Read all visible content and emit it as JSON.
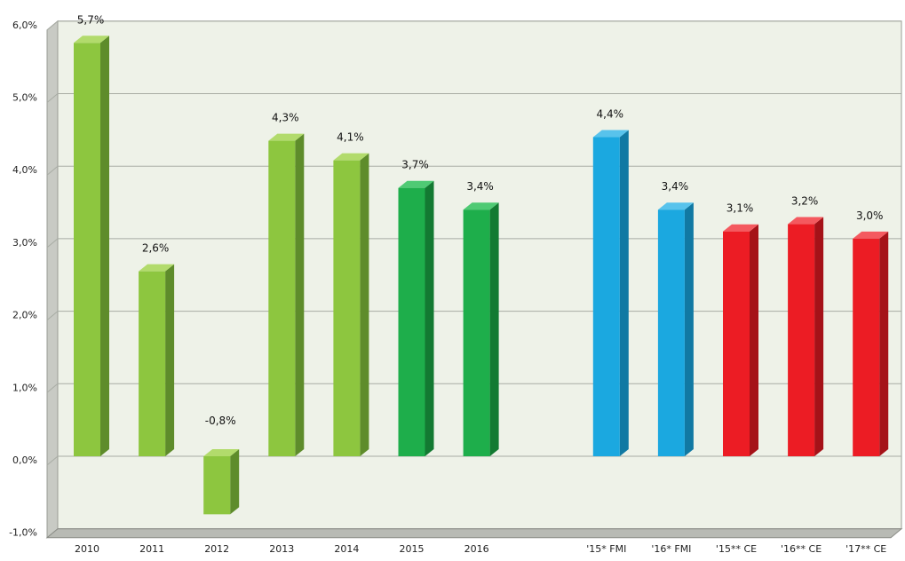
{
  "chart_data": {
    "type": "bar",
    "categories": [
      "2010",
      "2011",
      "2012",
      "2013",
      "2014",
      "2015",
      "2016",
      "",
      "'15* FMI",
      "'16* FMI",
      "'15** CE",
      "'16** CE",
      "'17** CE"
    ],
    "values": [
      5.7,
      2.55,
      -0.8,
      4.35,
      4.08,
      3.7,
      3.4,
      null,
      4.4,
      3.4,
      3.1,
      3.2,
      3.0
    ],
    "data_labels": [
      "5,7%",
      "2,6%",
      "-0,8%",
      "4,3%",
      "4,1%",
      "3,7%",
      "3,4%",
      "",
      "4,4%",
      "3,4%",
      "3,1%",
      "3,2%",
      "3,0%"
    ],
    "bar_colors": [
      "light-green",
      "light-green",
      "light-green",
      "light-green",
      "light-green",
      "green",
      "green",
      "",
      "blue",
      "blue",
      "red",
      "red",
      "red"
    ],
    "colors": {
      "light-green": {
        "front": "#8dc63f",
        "side": "#5e8c2b",
        "top": "#b2db6c"
      },
      "green": {
        "front": "#1eae4b",
        "side": "#137a32",
        "top": "#4fca74"
      },
      "blue": {
        "front": "#1ba8e0",
        "side": "#1179a3",
        "top": "#58c3ec"
      },
      "red": {
        "front": "#ec1c24",
        "side": "#a51218",
        "top": "#f4595f"
      },
      "plot_back": "#eef2e8",
      "plot_floor": "#b8bab4",
      "plot_left_wall": "#c8cac4",
      "grid": "#a8aca4"
    },
    "y_tick_labels": [
      "-1,0%",
      "0,0%",
      "1,0%",
      "2,0%",
      "3,0%",
      "4,0%",
      "5,0%",
      "6,0%"
    ],
    "y_ticks": [
      -1,
      0,
      1,
      2,
      3,
      4,
      5,
      6
    ],
    "ylim": [
      -1,
      6
    ],
    "grid": true,
    "title": "",
    "xlabel": "",
    "ylabel": ""
  }
}
